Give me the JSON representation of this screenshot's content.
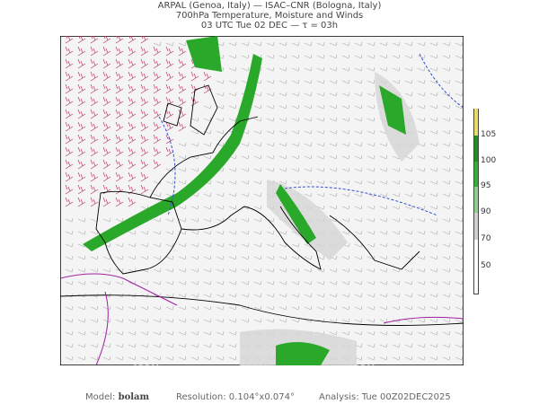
{
  "header": {
    "line1": "ARPAL (Genoa, Italy)  —  ISAC–CNR (Bologna, Italy)",
    "line2": "700hPa Temperature, Moisture and Winds",
    "line3": "03 UTC Tue 02 DEC  —  τ = 03h"
  },
  "colorbar": {
    "labels": [
      "105",
      "100",
      "95",
      "90",
      "70",
      "50"
    ],
    "colors": [
      "#e8dc6a",
      "#1f8f1f",
      "#35b035",
      "#8fd08f",
      "#d0d0d0",
      "#ffffff"
    ]
  },
  "map": {
    "watermark": "ARPAL",
    "colors": {
      "moisture": "#2aa82a",
      "isotherm_cold": "#a020a0",
      "isotherm": "#3050d0",
      "coast": "#000000",
      "barbs": "#999999",
      "jet_barbs": "#c0306a"
    }
  },
  "footer": {
    "model_label": "Model:",
    "model_value": "bolam",
    "resolution": "Resolution: 0.104°x0.074°",
    "analysis": "Analysis: Tue 00Z02DEC2025"
  }
}
